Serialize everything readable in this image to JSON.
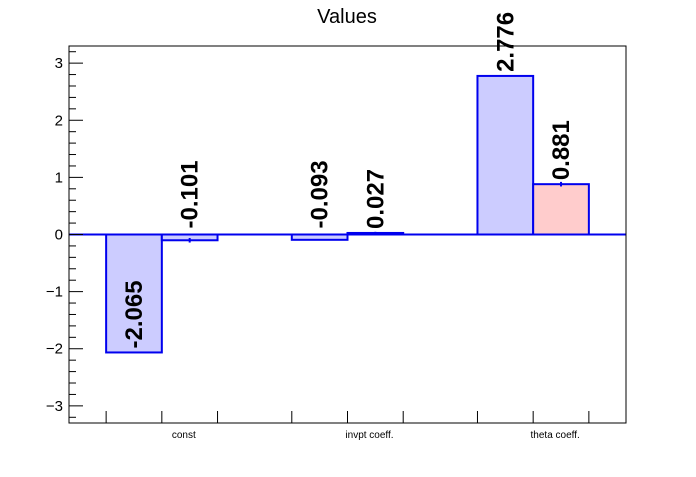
{
  "chart_data": {
    "type": "bar",
    "title": "Values",
    "xlabel": "",
    "ylabel": "",
    "categories": [
      "const",
      "invpt coeff.",
      "theta coeff."
    ],
    "series": [
      {
        "values": [
          -2.065,
          -0.093,
          2.776
        ],
        "errors": [
          0,
          0,
          0
        ]
      },
      {
        "values": [
          -0.101,
          0.027,
          0.881
        ],
        "errors": [
          0.04,
          0.02,
          0.04
        ]
      }
    ],
    "value_labels": [
      [
        "-2.065",
        "-0.093",
        "2.776"
      ],
      [
        "-0.101",
        "0.027",
        "0.881"
      ]
    ],
    "ylim": [
      -3.3,
      3.3
    ],
    "yticks": [
      -3,
      -2,
      -1,
      0,
      1,
      2,
      3
    ],
    "ytick_labels": [
      "−3",
      "−2",
      "−1",
      "0",
      "1",
      "2",
      "3"
    ],
    "grid": false,
    "legend": "none",
    "colors": {
      "series_fill": [
        "#ccccff",
        "#ccccff",
        "#ccccff",
        "#ccccff",
        "#ccccff",
        "#ffcccc"
      ],
      "bar_stroke": "#0000ee",
      "axis": "#000000",
      "zero_line": "#0000ee"
    }
  }
}
